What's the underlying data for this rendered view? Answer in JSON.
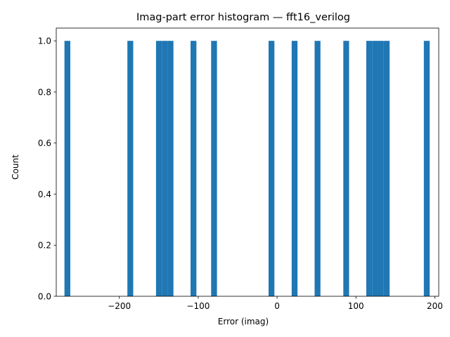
{
  "chart_data": {
    "type": "bar",
    "title": "Imag-part error histogram — fft16_verilog",
    "xlabel": "Error (imag)",
    "ylabel": "Count",
    "xlim": [
      -280,
      205
    ],
    "ylim": [
      0,
      1.05
    ],
    "xticks": [
      -200,
      -100,
      0,
      100,
      200
    ],
    "xtick_labels": [
      "−200",
      "−100",
      "0",
      "100",
      "200"
    ],
    "yticks": [
      0.0,
      0.2,
      0.4,
      0.6,
      0.8,
      1.0
    ],
    "ytick_labels": [
      "0.0",
      "0.2",
      "0.4",
      "0.6",
      "0.8",
      "1.0"
    ],
    "grid": false,
    "bar_color": "#1f77b4",
    "bins": [
      {
        "x0": -269.6,
        "x1": -262.2,
        "count": 1
      },
      {
        "x0": -189.8,
        "x1": -182.4,
        "count": 1
      },
      {
        "x0": -153.5,
        "x1": -146.1,
        "count": 1
      },
      {
        "x0": -146.1,
        "x1": -138.8,
        "count": 1
      },
      {
        "x0": -138.8,
        "x1": -131.4,
        "count": 1
      },
      {
        "x0": -109.7,
        "x1": -102.3,
        "count": 1
      },
      {
        "x0": -83.6,
        "x1": -76.2,
        "count": 1
      },
      {
        "x0": -10.8,
        "x1": -3.4,
        "count": 1
      },
      {
        "x0": 18.5,
        "x1": 25.9,
        "count": 1
      },
      {
        "x0": 47.6,
        "x1": 55.0,
        "count": 1
      },
      {
        "x0": 84.0,
        "x1": 91.3,
        "count": 1
      },
      {
        "x0": 113.1,
        "x1": 120.5,
        "count": 1
      },
      {
        "x0": 120.5,
        "x1": 127.9,
        "count": 1
      },
      {
        "x0": 127.9,
        "x1": 135.3,
        "count": 1
      },
      {
        "x0": 135.3,
        "x1": 142.7,
        "count": 1
      },
      {
        "x0": 186.1,
        "x1": 193.5,
        "count": 1
      }
    ]
  }
}
